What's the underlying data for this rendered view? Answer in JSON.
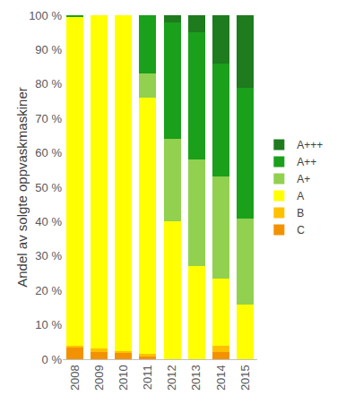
{
  "chart_data": {
    "type": "bar",
    "stacked": true,
    "ylabel": "Andel av solgte oppvaskmaskiner",
    "categories": [
      "2008",
      "2009",
      "2010",
      "2011",
      "2012",
      "2013",
      "2014",
      "2015"
    ],
    "series": [
      {
        "name": "C",
        "color": "#f39200",
        "values": [
          3.5,
          2,
          2,
          1,
          0,
          0,
          2,
          0
        ]
      },
      {
        "name": "B",
        "color": "#ffc000",
        "values": [
          0.5,
          1,
          0.3,
          0.5,
          0,
          0,
          2,
          0
        ]
      },
      {
        "name": "A",
        "color": "#ffff00",
        "values": [
          95.7,
          97,
          97.7,
          74.5,
          40,
          27,
          19.5,
          16
        ]
      },
      {
        "name": "A+",
        "color": "#92d050",
        "values": [
          0,
          0,
          0,
          7,
          24,
          31,
          29.5,
          25
        ]
      },
      {
        "name": "A++",
        "color": "#1aa01a",
        "values": [
          0.3,
          0,
          0,
          17,
          34,
          37,
          33,
          38
        ]
      },
      {
        "name": "A+++",
        "color": "#1e7b1e",
        "values": [
          0,
          0,
          0,
          0,
          2,
          5,
          14,
          21
        ]
      }
    ],
    "ylim": [
      0,
      100
    ],
    "yticks": [
      {
        "value": 0,
        "label": "0 %"
      },
      {
        "value": 10,
        "label": "10 %"
      },
      {
        "value": 20,
        "label": "20 %"
      },
      {
        "value": 30,
        "label": "30 %"
      },
      {
        "value": 40,
        "label": "40 %"
      },
      {
        "value": 50,
        "label": "50 %"
      },
      {
        "value": 60,
        "label": "60 %"
      },
      {
        "value": 70,
        "label": "70 %"
      },
      {
        "value": 80,
        "label": "80 %"
      },
      {
        "value": 90,
        "label": "90 %"
      },
      {
        "value": 100,
        "label": "100 %"
      }
    ],
    "grid": false,
    "legend": "right"
  }
}
